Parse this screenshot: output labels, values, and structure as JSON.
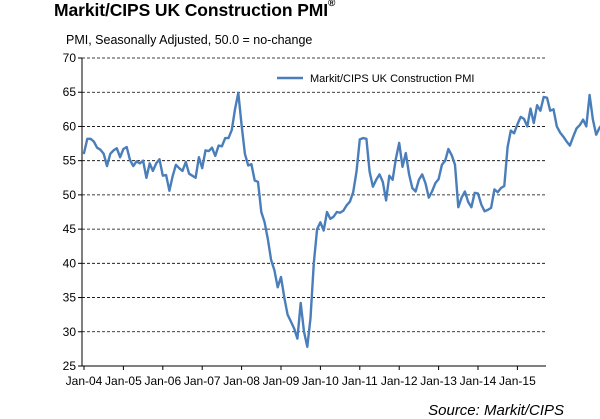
{
  "header": {
    "title": "Markit/CIPS UK Construction PMI",
    "title_mark": "®",
    "subtitle": "PMI, Seasonally Adjusted, 50.0 = no-change"
  },
  "footer": {
    "source": "Source: Markit/CIPS"
  },
  "colors": {
    "line": "#4a7ebb",
    "grid": "#000000",
    "text": "#000000"
  },
  "chart_data": {
    "type": "line",
    "title": "Markit/CIPS UK Construction PMI",
    "subtitle": "PMI, Seasonally Adjusted, 50.0 = no-change",
    "xlabel": "",
    "ylabel": "",
    "ylim": [
      25,
      70
    ],
    "yticks": [
      25,
      30,
      35,
      40,
      45,
      50,
      55,
      60,
      65,
      70
    ],
    "xticks": [
      "Jan-04",
      "Jan-05",
      "Jan-06",
      "Jan-07",
      "Jan-08",
      "Jan-09",
      "Jan-10",
      "Jan-11",
      "Jan-12",
      "Jan-13",
      "Jan-14",
      "Jan-15"
    ],
    "grid": "horizontal dashed",
    "legend": "top-right",
    "x_start": "Jan-04",
    "x_frequency": "monthly",
    "series": [
      {
        "name": "Markit/CIPS UK Construction PMI",
        "values": [
          56.1,
          58.2,
          58.2,
          57.8,
          56.9,
          56.6,
          56.0,
          54.2,
          56.0,
          56.5,
          56.8,
          55.5,
          56.7,
          57.0,
          55.1,
          54.2,
          54.9,
          54.6,
          55.0,
          52.5,
          54.6,
          53.5,
          54.6,
          55.2,
          52.8,
          52.9,
          50.6,
          52.7,
          54.4,
          53.9,
          53.5,
          54.8,
          53.1,
          52.8,
          52.5,
          55.5,
          53.9,
          56.5,
          56.4,
          56.9,
          55.7,
          57.2,
          57.1,
          58.3,
          58.3,
          59.5,
          62.5,
          64.9,
          60.2,
          56.0,
          54.3,
          54.5,
          52.1,
          51.9,
          47.5,
          46.0,
          43.5,
          40.5,
          39.0,
          36.5,
          38.0,
          35.0,
          32.5,
          31.5,
          30.5,
          29.0,
          34.2,
          30.0,
          27.8,
          32.0,
          40.0,
          45.0,
          46.0,
          44.8,
          47.5,
          46.5,
          46.8,
          47.5,
          47.4,
          47.7,
          48.5,
          49.0,
          50.4,
          53.4,
          58.1,
          58.3,
          58.2,
          53.4,
          51.2,
          52.2,
          53.0,
          51.9,
          49.2,
          52.8,
          52.2,
          55.3,
          57.6,
          54.1,
          56.1,
          53.0,
          51.0,
          50.5,
          52.2,
          53.0,
          51.7,
          49.6,
          50.5,
          51.7,
          52.3,
          54.4,
          55.0,
          56.7,
          55.8,
          54.4,
          48.2,
          49.6,
          50.5,
          49.0,
          48.2,
          50.3,
          50.2,
          48.6,
          47.6,
          47.8,
          48.1,
          50.8,
          50.4,
          51.0,
          51.3,
          57.0,
          59.4,
          59.0,
          60.3,
          61.4,
          61.1,
          60.0,
          62.6,
          60.5,
          63.1,
          62.3,
          64.3,
          64.2,
          62.3,
          62.5,
          60.0,
          59.1,
          58.5,
          57.8,
          57.2,
          58.5,
          59.7,
          60.2,
          61.0,
          60.0,
          64.6,
          61.0,
          58.8,
          59.8,
          60.4
        ]
      }
    ]
  }
}
